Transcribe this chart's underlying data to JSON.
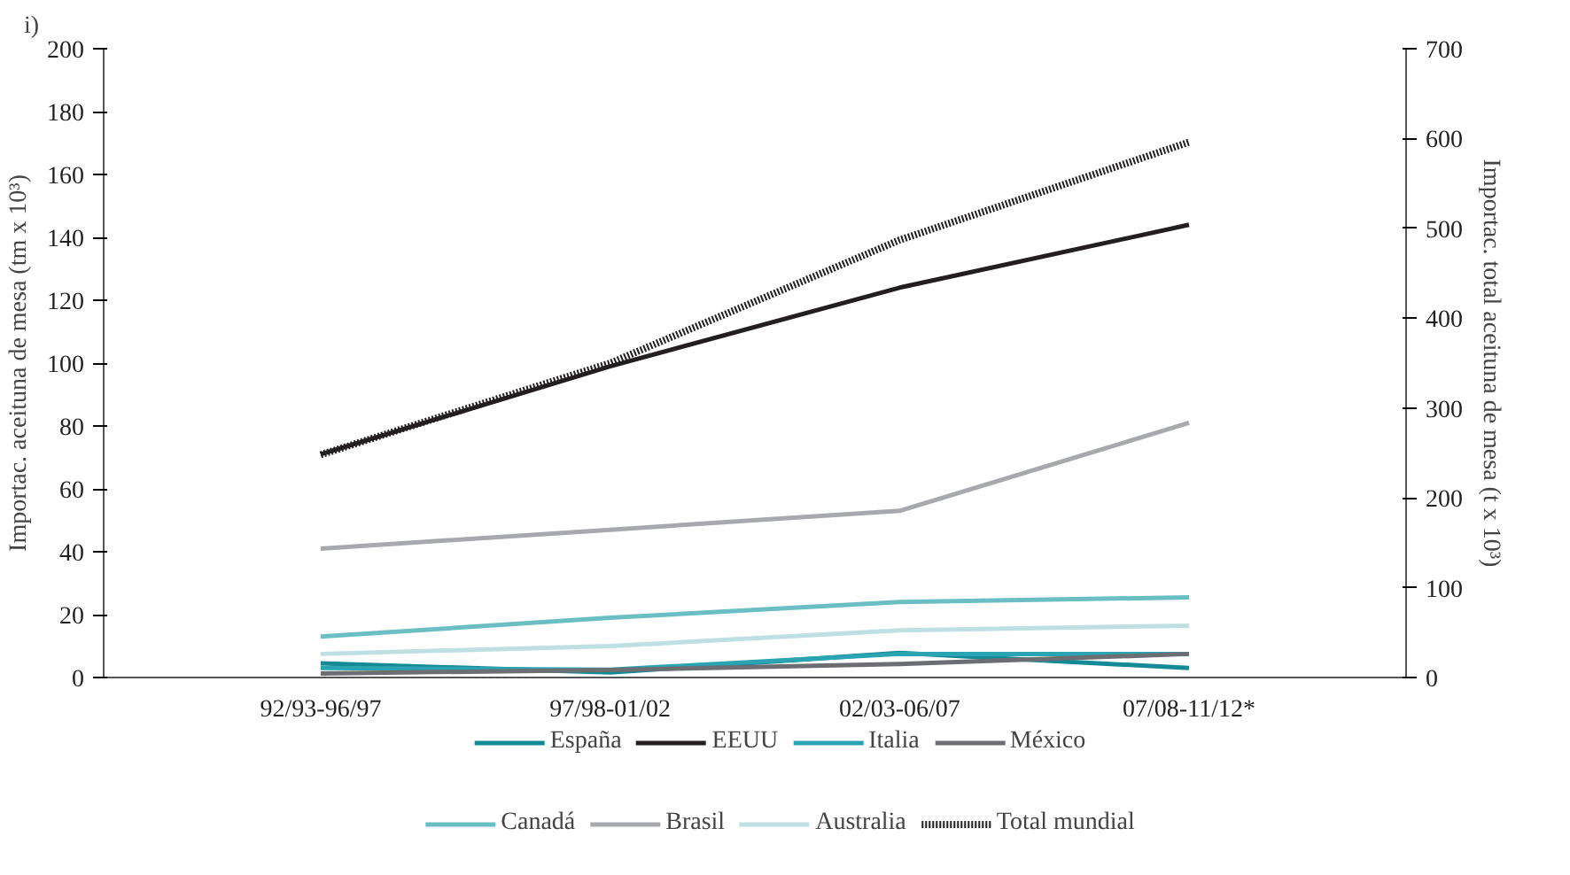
{
  "chart_data": {
    "type": "line",
    "categories": [
      "92/93-96/97",
      "97/98-01/02",
      "02/03-06/07",
      "07/08-11/12*"
    ],
    "ylabel": "Importac. aceituna de mesa (tm x 10³)",
    "y2label": "Importac. total aceituna de mesa (t x 10³)",
    "annotations": [
      "i)"
    ],
    "ylim": [
      0,
      200
    ],
    "yticks": [
      0,
      20,
      40,
      60,
      80,
      100,
      120,
      140,
      160,
      180,
      200
    ],
    "y2lim": [
      0,
      700
    ],
    "y2ticks": [
      0,
      100,
      200,
      300,
      400,
      500,
      600,
      700
    ],
    "grid": false,
    "legend": "bottom",
    "marker": "none",
    "series": [
      {
        "name": "España",
        "color": "#138a96",
        "values": [
          4.5,
          1.6,
          7.8,
          3
        ]
      },
      {
        "name": "EEUU",
        "color": "#231f20",
        "values": [
          71,
          99,
          124,
          144
        ]
      },
      {
        "name": "Italia",
        "color": "#2aa3b3",
        "values": [
          3,
          2.5,
          7.5,
          7.5
        ]
      },
      {
        "name": "México",
        "color": "#6d6e71",
        "values": [
          1.3,
          2.4,
          4.3,
          7.5
        ]
      },
      {
        "name": "Canadá",
        "color": "#6bbfc4",
        "values": [
          13,
          19,
          24,
          25.5
        ]
      },
      {
        "name": "Brasil",
        "color": "#a7a9ac",
        "values": [
          41,
          47,
          53,
          81
        ]
      },
      {
        "name": "Australia",
        "color": "#bfe0e3",
        "values": [
          7.5,
          10,
          15,
          16.5
        ]
      },
      {
        "name": "Total mundial",
        "color": "#231f20",
        "axis": "y2",
        "line_style": "dotted",
        "values": [
          248,
          350,
          487,
          596
        ]
      }
    ]
  }
}
